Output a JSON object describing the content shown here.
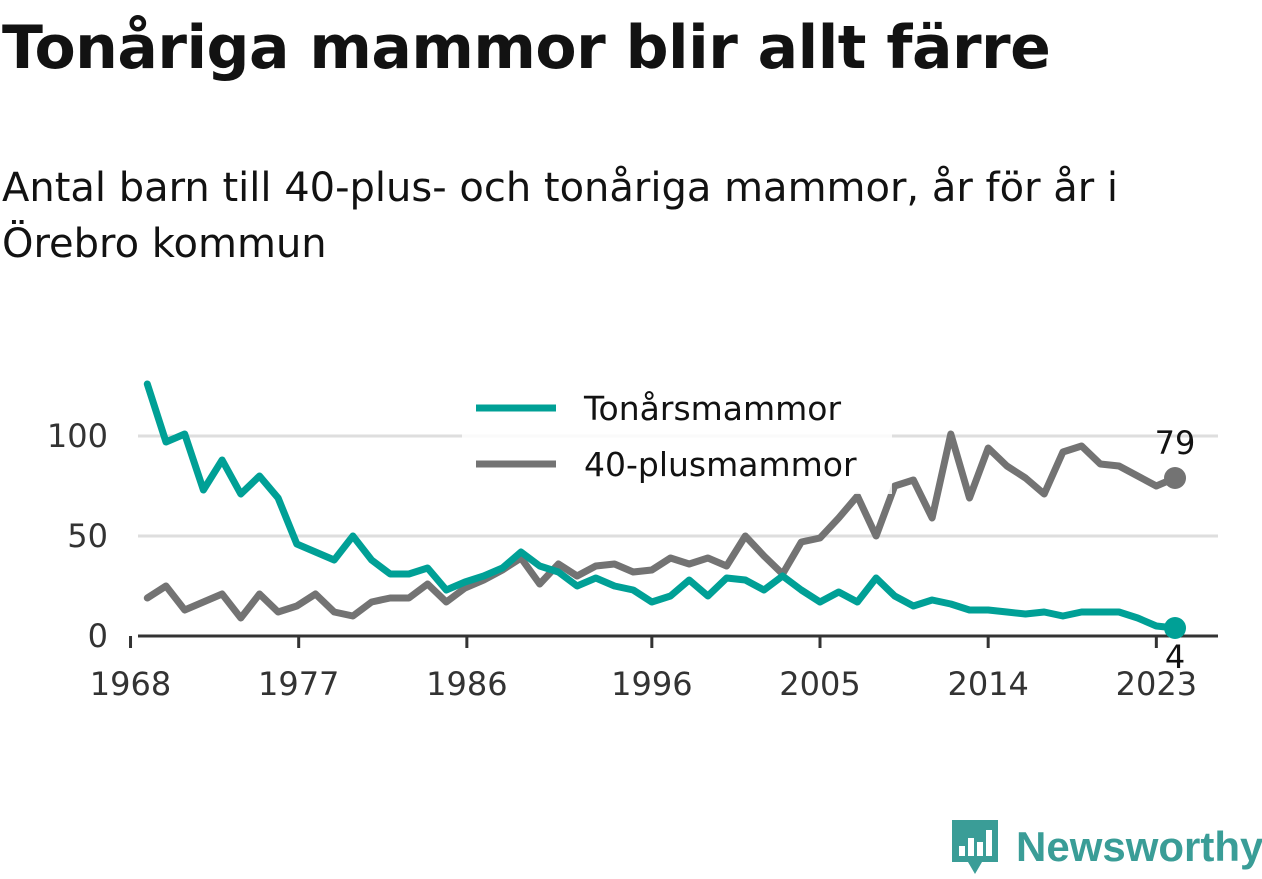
{
  "title": "Tonåriga mammor blir allt färre",
  "subtitle": "Antal barn till 40-plus- och tonåriga mammor, år för år i Örebro kommun",
  "brand": {
    "name": "Newsworthy",
    "icon": "newsworthy-logo-icon",
    "color": "#3a9d97"
  },
  "chart_data": {
    "type": "line",
    "title": "Tonåriga mammor blir allt färre",
    "subtitle": "Antal barn till 40-plus- och tonåriga mammor, år för år i Örebro kommun",
    "xlabel": "",
    "ylabel": "",
    "x": [
      1969,
      1970,
      1971,
      1972,
      1973,
      1974,
      1975,
      1976,
      1977,
      1978,
      1979,
      1980,
      1981,
      1982,
      1983,
      1984,
      1985,
      1986,
      1987,
      1988,
      1989,
      1990,
      1991,
      1992,
      1993,
      1994,
      1995,
      1996,
      1997,
      1998,
      1999,
      2000,
      2001,
      2002,
      2003,
      2004,
      2005,
      2006,
      2007,
      2008,
      2009,
      2010,
      2011,
      2012,
      2013,
      2014,
      2015,
      2016,
      2017,
      2018,
      2019,
      2020,
      2021,
      2022,
      2023,
      2024
    ],
    "x_ticks": [
      "1968",
      "1977",
      "1986",
      "1996",
      "2005",
      "2014",
      "2023"
    ],
    "x_tick_values": [
      1968.1,
      1977.1,
      1986.1,
      1996.0,
      2005.0,
      2014.0,
      2023.0
    ],
    "xlim": [
      1968.5,
      2026.3
    ],
    "y_ticks": [
      "0",
      "50",
      "100"
    ],
    "y_tick_values": [
      0,
      50,
      100
    ],
    "ylim": [
      0,
      130
    ],
    "grid": true,
    "legend_position": "top-center",
    "series": [
      {
        "name": "Tonårsmammor",
        "color": "#00a096",
        "end_label": "4",
        "values": [
          126,
          97,
          101,
          73,
          88,
          71,
          80,
          69,
          46,
          42,
          38,
          50,
          38,
          31,
          31,
          34,
          23,
          27,
          30,
          34,
          42,
          35,
          32,
          25,
          29,
          25,
          23,
          17,
          20,
          28,
          20,
          29,
          28,
          23,
          30,
          23,
          17,
          22,
          17,
          29,
          20,
          15,
          18,
          16,
          13,
          13,
          12,
          11,
          12,
          10,
          12,
          12,
          12,
          9,
          5,
          4
        ]
      },
      {
        "name": "40-plusmammor",
        "color": "#737373",
        "end_label": "79",
        "values": [
          19,
          25,
          13,
          17,
          21,
          9,
          21,
          12,
          15,
          21,
          12,
          10,
          17,
          19,
          19,
          26,
          17,
          24,
          28,
          33,
          39,
          26,
          36,
          30,
          35,
          36,
          32,
          33,
          39,
          36,
          39,
          35,
          50,
          40,
          31,
          47,
          49,
          59,
          70,
          50,
          75,
          78,
          59,
          101,
          69,
          94,
          85,
          79,
          71,
          92,
          95,
          86,
          85,
          80,
          75,
          79
        ]
      }
    ]
  }
}
